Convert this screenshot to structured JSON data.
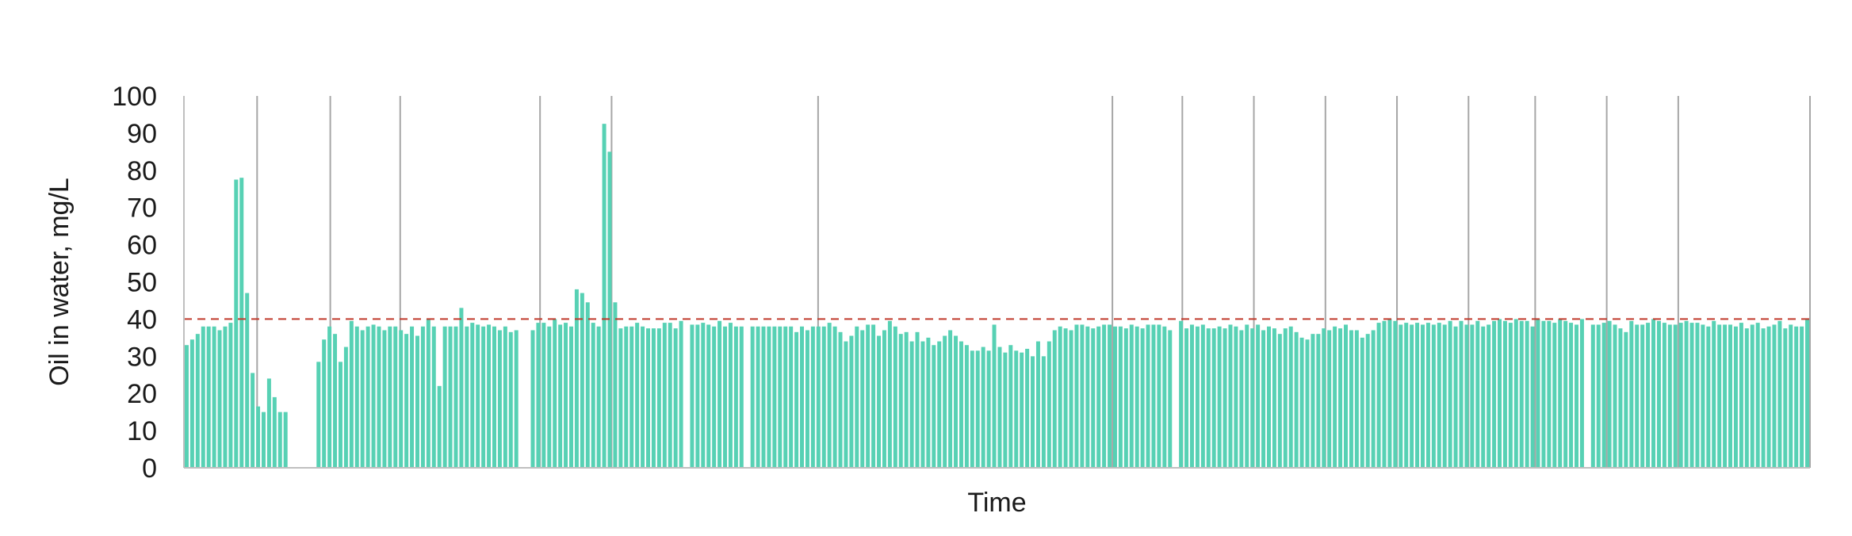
{
  "chart_data": {
    "type": "bar",
    "title": "",
    "xlabel": "Time",
    "ylabel": "Oil in water, mg/L",
    "ylim": [
      0,
      100
    ],
    "yticks": [
      0,
      10,
      20,
      30,
      40,
      50,
      60,
      70,
      80,
      90,
      100
    ],
    "xtick_labels": "none",
    "grid": "vertical event lines only",
    "legend": "none",
    "values": [
      33,
      34.5,
      36,
      38,
      38,
      38,
      37,
      38,
      39,
      77.5,
      78,
      47,
      25.5,
      16.5,
      15,
      24,
      19,
      15,
      15,
      0,
      0,
      0,
      0,
      0,
      28.5,
      34.5,
      38,
      36,
      28.5,
      32.5,
      39.5,
      38,
      37,
      38,
      38.5,
      38,
      37,
      38,
      38,
      37,
      36,
      38,
      35.5,
      38,
      40,
      38,
      22,
      38,
      38,
      38,
      43,
      38,
      39,
      38.5,
      38,
      38.5,
      38,
      37,
      38,
      36.5,
      37,
      0,
      0,
      37,
      39,
      39,
      38,
      40,
      38.5,
      39,
      38,
      48,
      47,
      44.5,
      39,
      38,
      92.5,
      85,
      44.5,
      37.5,
      38,
      38,
      39,
      38,
      37.5,
      37.5,
      37.5,
      39,
      39,
      37.5,
      39.5,
      0,
      38.5,
      38.5,
      39,
      38.5,
      38,
      39.5,
      38,
      39,
      38,
      38,
      0,
      38,
      38,
      38,
      38,
      38,
      38,
      38,
      38,
      36.5,
      38,
      37,
      38,
      38,
      38,
      39,
      38,
      36.5,
      34,
      35.5,
      38,
      37,
      38.5,
      38.5,
      35.5,
      37,
      39.5,
      38,
      36,
      36.5,
      34,
      36.5,
      34,
      35,
      33,
      34,
      35.5,
      37,
      35.5,
      34,
      33,
      31.5,
      31.5,
      32.5,
      31.5,
      38.5,
      32.5,
      31,
      33,
      31.5,
      31,
      32,
      30,
      34,
      30,
      34,
      37,
      38,
      37.5,
      37,
      38.5,
      38.5,
      38,
      37.5,
      38,
      38.5,
      38.5,
      38,
      38,
      37.5,
      38.5,
      38,
      37.5,
      38.5,
      38.5,
      38.5,
      38,
      37,
      0,
      39.5,
      37.5,
      38.5,
      38,
      38.5,
      37.5,
      37.5,
      38,
      37.5,
      38.5,
      38,
      37,
      38.5,
      37.5,
      38.5,
      37,
      38,
      37.5,
      36,
      37.5,
      38,
      36.5,
      35,
      34.5,
      36,
      36,
      37.5,
      37,
      38,
      37.5,
      38.5,
      37,
      37,
      35,
      36,
      37,
      39,
      39.5,
      40,
      39.5,
      38.5,
      39,
      38.5,
      39,
      38.5,
      39,
      38.5,
      39,
      38.5,
      39.5,
      38,
      39.5,
      38.5,
      38.5,
      39.5,
      38,
      38.5,
      39.5,
      40,
      39.5,
      39,
      40,
      39.5,
      39.5,
      38,
      40,
      39.5,
      39.5,
      39,
      40,
      39.5,
      39,
      38.5,
      40,
      0,
      38.5,
      38.5,
      39,
      39.5,
      38.5,
      37.5,
      36.5,
      39.5,
      38.5,
      38.5,
      39,
      40,
      39.5,
      39,
      38.5,
      38.5,
      39,
      39.5,
      39,
      39,
      38.5,
      38,
      39.5,
      38.5,
      38.5,
      38.5,
      38,
      39,
      37.5,
      38.5,
      39,
      37.5,
      38,
      38.5,
      39.5,
      37.5,
      38.5,
      38,
      38,
      40
    ],
    "threshold": {
      "value": 40,
      "style": "dashed",
      "color": "#c0392b"
    },
    "event_lines_fraction": [
      0.045,
      0.09,
      0.133,
      0.219,
      0.263,
      0.39,
      0.571,
      0.614,
      0.658,
      0.702,
      0.746,
      0.79,
      0.831,
      0.875,
      0.919,
      1.0
    ],
    "colors": {
      "bar": "#57d1b4",
      "event_line": "#a6a6a6",
      "axis": "#bfbfbf",
      "threshold": "#c0392b"
    }
  }
}
